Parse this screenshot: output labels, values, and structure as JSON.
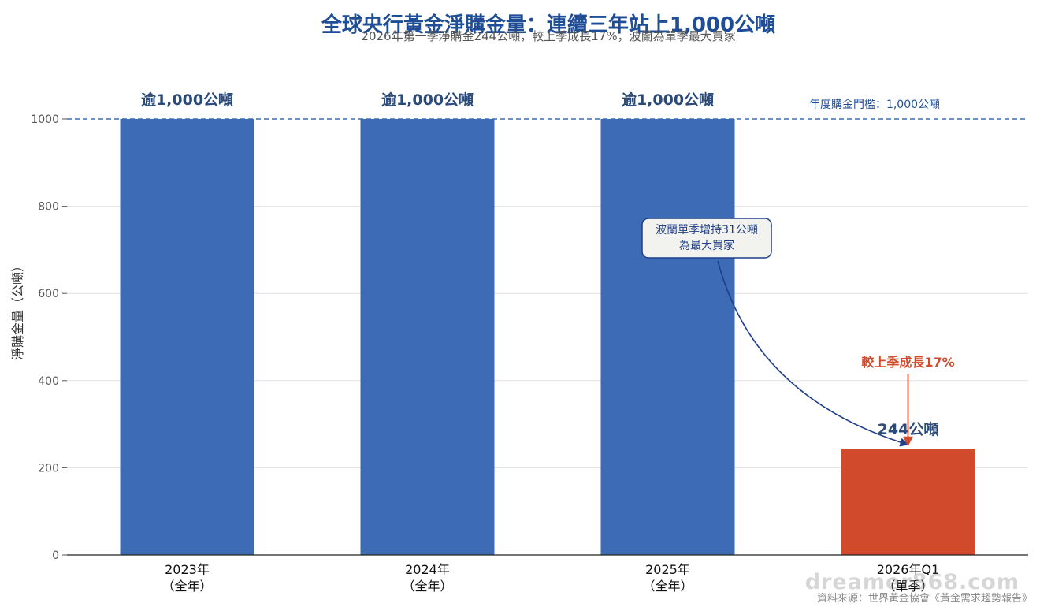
{
  "chart_data": {
    "type": "bar",
    "title": "全球央行黃金淨購金量：連續三年站上1,000公噸",
    "subtitle": "2026年第一季淨購金244公噸，較上季成長17%，波蘭為單季最大買家",
    "ylabel": "淨購金量（公噸）",
    "xlabel": "",
    "ylim": [
      0,
      1000
    ],
    "yticks": [
      0,
      200,
      400,
      600,
      800,
      1000
    ],
    "grid": true,
    "categories": [
      {
        "line1": "2023年",
        "line2": "（全年）"
      },
      {
        "line1": "2024年",
        "line2": "（全年）"
      },
      {
        "line1": "2025年",
        "line2": "（全年）"
      },
      {
        "line1": "2026年Q1",
        "line2": "（單季）"
      }
    ],
    "values": [
      1000,
      1000,
      1000,
      244
    ],
    "value_labels": [
      "逾1,000公噸",
      "逾1,000公噸",
      "逾1,000公噸",
      "244公噸"
    ],
    "bar_colors": [
      "#3d6bb5",
      "#3d6bb5",
      "#3d6bb5",
      "#d24a2c"
    ],
    "threshold": {
      "value": 1000,
      "label": "年度購金門檻：1,000公噸",
      "color": "#3d6bb5"
    },
    "annotations": [
      {
        "text_lines": [
          "波蘭單季增持31公噸",
          "為最大買家"
        ],
        "target_category": 3
      },
      {
        "text": "較上季成長17%",
        "target_category": 3,
        "color": "#d24a2c"
      }
    ],
    "colors": {
      "title": "#1f4e96",
      "label": "#2a4a7a",
      "axis_text": "#555555",
      "grid": "#e0e0e0",
      "accent_red": "#d24a2c"
    }
  },
  "watermark": "dreamer868.com",
  "source": "資料來源：世界黃金協會《黃金需求趨勢報告》"
}
